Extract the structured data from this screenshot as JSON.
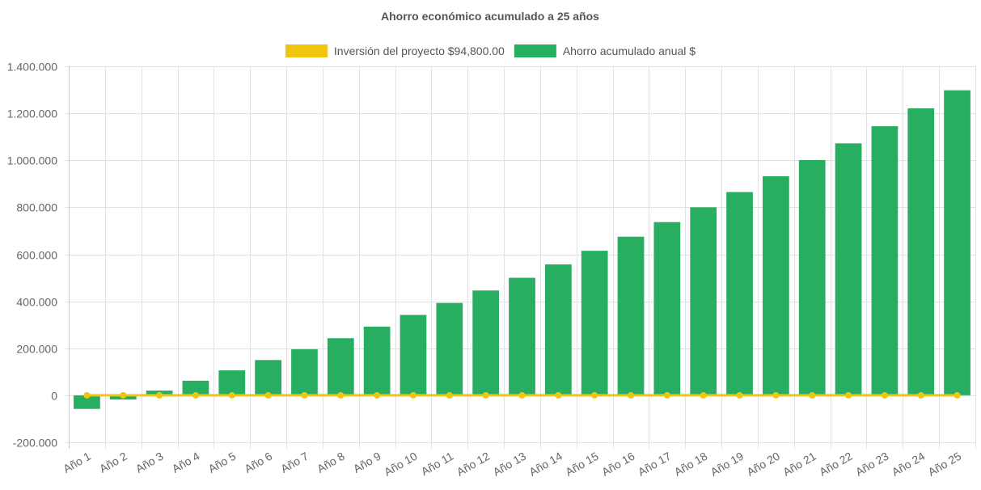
{
  "chart_data": {
    "type": "bar",
    "title": "Ahorro económico acumulado a 25 años",
    "categories": [
      "Año 1",
      "Año 2",
      "Año 3",
      "Año 4",
      "Año 5",
      "Año 6",
      "Año 7",
      "Año 8",
      "Año 9",
      "Año 10",
      "Año 11",
      "Año 12",
      "Año 13",
      "Año 14",
      "Año 15",
      "Año 16",
      "Año 17",
      "Año 18",
      "Año 19",
      "Año 20",
      "Año 21",
      "Año 22",
      "Año 23",
      "Año 24",
      "Año 25"
    ],
    "series": [
      {
        "name": "Inversión del proyecto $94,800.00",
        "type": "line",
        "color": "#f1c40f",
        "values": [
          0,
          0,
          0,
          0,
          0,
          0,
          0,
          0,
          0,
          0,
          0,
          0,
          0,
          0,
          0,
          0,
          0,
          0,
          0,
          0,
          0,
          0,
          0,
          0,
          0
        ]
      },
      {
        "name": "Ahorro acumulado anual $",
        "type": "bar",
        "color": "#27ae60",
        "values": [
          -58000,
          -18000,
          20000,
          62000,
          106000,
          150000,
          196000,
          243000,
          292000,
          342000,
          393000,
          446000,
          500000,
          557000,
          615000,
          675000,
          737000,
          800000,
          865000,
          932000,
          1001000,
          1072000,
          1145000,
          1221000,
          1298000
        ]
      }
    ],
    "ylim": [
      -200000,
      1400000
    ],
    "yticks": [
      1400000,
      1200000,
      1000000,
      800000,
      600000,
      400000,
      200000,
      0,
      -200000
    ],
    "ytick_labels": [
      "1.400.000",
      "1.200.000",
      "1.000.000",
      "800.000",
      "600.000",
      "400.000",
      "200.000",
      "0",
      "-200.000"
    ],
    "grid": true,
    "legend_position": "top-center"
  }
}
